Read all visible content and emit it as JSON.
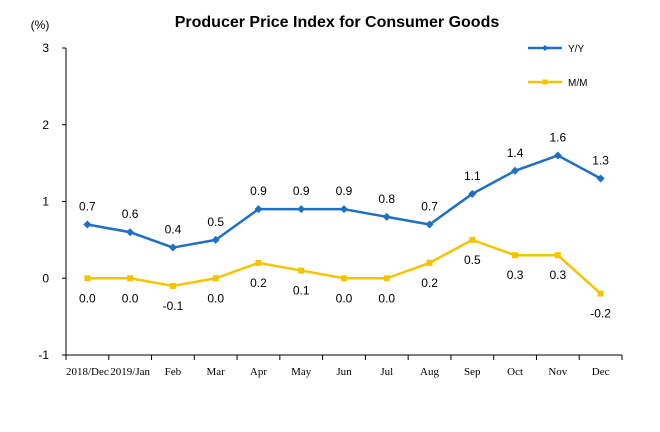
{
  "chart_data": {
    "type": "line",
    "title": "Producer Price Index for Consumer Goods",
    "ylabel": "(%)",
    "xlabel": "",
    "ylim": [
      -1,
      3
    ],
    "yticks": [
      "3",
      "2",
      "1",
      "0",
      "-1"
    ],
    "categories": [
      "2018/Dec",
      "2019/Jan",
      "Feb",
      "Mar",
      "Apr",
      "May",
      "Jun",
      "Jul",
      "Aug",
      "Sep",
      "Oct",
      "Nov",
      "Dec"
    ],
    "legend_position": "top-right",
    "series": [
      {
        "name": "Y/Y",
        "color": "#1f6fc5",
        "marker": "diamond",
        "values": [
          0.7,
          0.6,
          0.4,
          0.5,
          0.9,
          0.9,
          0.9,
          0.8,
          0.7,
          1.1,
          1.4,
          1.6,
          1.3
        ],
        "labels": [
          "0.7",
          "0.6",
          "0.4",
          "0.5",
          "0.9",
          "0.9",
          "0.9",
          "0.8",
          "0.7",
          "1.1",
          "1.4",
          "1.6",
          "1.3"
        ]
      },
      {
        "name": "M/M",
        "color": "#f5c400",
        "marker": "square",
        "values": [
          0.0,
          0.0,
          -0.1,
          0.0,
          0.2,
          0.1,
          0.0,
          0.0,
          0.2,
          0.5,
          0.3,
          0.3,
          -0.2
        ],
        "labels": [
          "0.0",
          "0.0",
          "-0.1",
          "0.0",
          "0.2",
          "0.1",
          "0.0",
          "0.0",
          "0.2",
          "0.5",
          "0.3",
          "0.3",
          "-0.2"
        ]
      }
    ]
  }
}
